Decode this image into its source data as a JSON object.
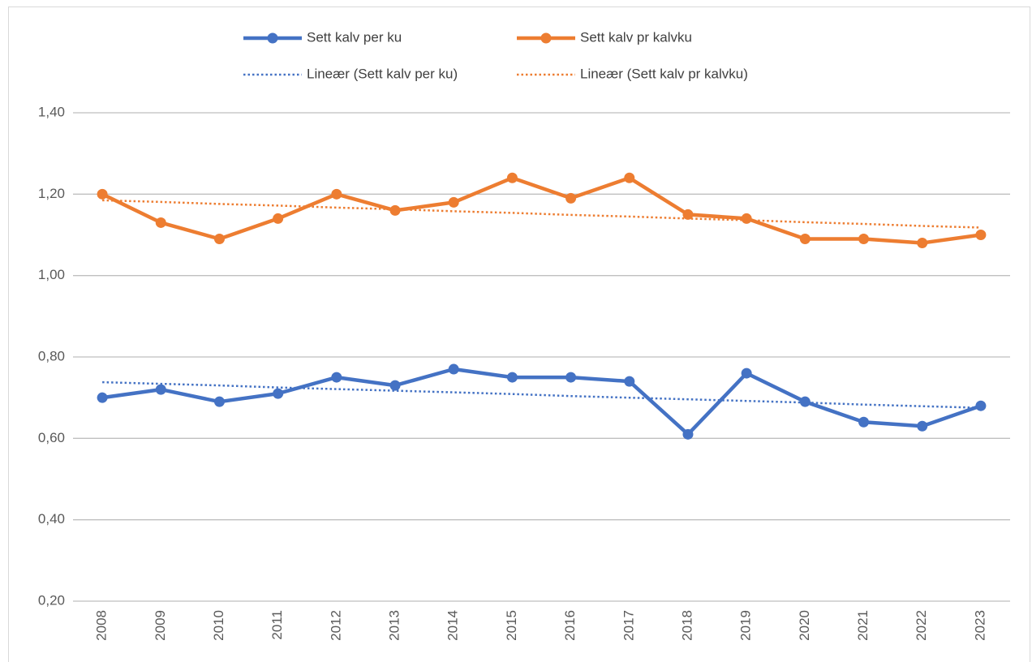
{
  "chart_data": {
    "type": "line",
    "categories": [
      "2008",
      "2009",
      "2010",
      "2011",
      "2012",
      "2013",
      "2014",
      "2015",
      "2016",
      "2017",
      "2018",
      "2019",
      "2020",
      "2021",
      "2022",
      "2023"
    ],
    "series": [
      {
        "name": "Sett kalv per ku",
        "color": "#4472c4",
        "dash": "solid",
        "marker": true,
        "values": [
          0.7,
          0.72,
          0.69,
          0.71,
          0.75,
          0.73,
          0.77,
          0.75,
          0.75,
          0.74,
          0.61,
          0.76,
          0.69,
          0.64,
          0.63,
          0.68
        ]
      },
      {
        "name": "Sett kalv pr kalvku",
        "color": "#ed7d31",
        "dash": "solid",
        "marker": true,
        "values": [
          1.2,
          1.13,
          1.09,
          1.14,
          1.2,
          1.16,
          1.18,
          1.24,
          1.19,
          1.24,
          1.15,
          1.14,
          1.09,
          1.09,
          1.08,
          1.1
        ]
      },
      {
        "name": "Lineær (Sett kalv per ku)",
        "color": "#4472c4",
        "dash": "dotted",
        "marker": false,
        "values": [
          0.738,
          0.734,
          0.73,
          0.725,
          0.721,
          0.717,
          0.713,
          0.709,
          0.704,
          0.7,
          0.696,
          0.692,
          0.688,
          0.683,
          0.679,
          0.675
        ]
      },
      {
        "name": "Lineær (Sett kalv pr kalvku)",
        "color": "#ed7d31",
        "dash": "dotted",
        "marker": false,
        "values": [
          1.185,
          1.181,
          1.176,
          1.172,
          1.167,
          1.163,
          1.158,
          1.154,
          1.149,
          1.145,
          1.14,
          1.136,
          1.131,
          1.127,
          1.122,
          1.118
        ]
      }
    ],
    "ylim": [
      0.2,
      1.4
    ],
    "yticks": [
      {
        "value": 0.2,
        "label": "0,20"
      },
      {
        "value": 0.4,
        "label": "0,40"
      },
      {
        "value": 0.6,
        "label": "0,60"
      },
      {
        "value": 0.8,
        "label": "0,80"
      },
      {
        "value": 1.0,
        "label": "1,00"
      },
      {
        "value": 1.2,
        "label": "1,20"
      },
      {
        "value": 1.4,
        "label": "1,40"
      }
    ],
    "grid": true,
    "legend": "top"
  }
}
